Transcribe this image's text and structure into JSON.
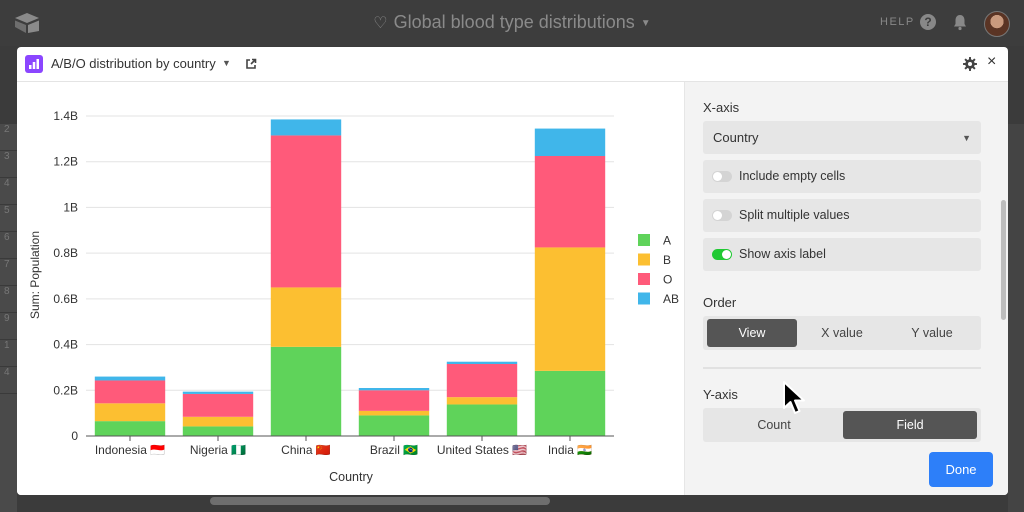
{
  "app": {
    "base_title": "Global blood type distributions",
    "help_label": "HELP",
    "icons": [
      "app-logo-icon",
      "heart-icon",
      "chevron-down-icon",
      "help-icon",
      "bell-icon",
      "avatar"
    ],
    "background_row_numbers": [
      "2",
      "3",
      "4",
      "5",
      "6",
      "7",
      "8",
      "9",
      "1",
      "4"
    ]
  },
  "modal": {
    "title": "A/B/O distribution by country",
    "icons": [
      "bar-chart-icon",
      "chevron-down-icon",
      "expand-icon",
      "gear-icon",
      "close-icon"
    ],
    "close_glyph": "×",
    "done_label": "Done",
    "accent_color": "#2d7ff9"
  },
  "panel": {
    "x_axis_label": "X-axis",
    "x_axis_value": "Country",
    "toggles": [
      {
        "label": "Include empty cells",
        "on": false
      },
      {
        "label": "Split multiple values",
        "on": false
      },
      {
        "label": "Show axis label",
        "on": true
      }
    ],
    "order_label": "Order",
    "order_options": [
      "View",
      "X value",
      "Y value"
    ],
    "order_selected": "View",
    "y_axis_label": "Y-axis",
    "y_axis_options": [
      "Count",
      "Field"
    ],
    "y_axis_selected": "Field"
  },
  "chart_data": {
    "type": "bar",
    "stacked": true,
    "categories": [
      "Indonesia 🇮🇩",
      "Nigeria 🇳🇬",
      "China 🇨🇳",
      "Brazil 🇧🇷",
      "United States 🇺🇸",
      "India 🇮🇳"
    ],
    "series": [
      {
        "name": "A",
        "color": "#5fd35a",
        "values": [
          0.065,
          0.042,
          0.39,
          0.09,
          0.138,
          0.285
        ]
      },
      {
        "name": "B",
        "color": "#fcbf31",
        "values": [
          0.078,
          0.042,
          0.26,
          0.02,
          0.032,
          0.54
        ]
      },
      {
        "name": "O",
        "color": "#ff5a7a",
        "values": [
          0.1,
          0.1,
          0.665,
          0.09,
          0.145,
          0.4
        ]
      },
      {
        "name": "AB",
        "color": "#40b6ea",
        "values": [
          0.017,
          0.01,
          0.07,
          0.01,
          0.01,
          0.12
        ]
      }
    ],
    "xlabel": "Country",
    "ylabel": "Sum: Population",
    "ylim": [
      0,
      1.4
    ],
    "yticks": [
      "0",
      "0.2B",
      "0.4B",
      "0.6B",
      "0.8B",
      "1B",
      "1.2B",
      "1.4B"
    ],
    "grid": true,
    "legend": "right"
  }
}
